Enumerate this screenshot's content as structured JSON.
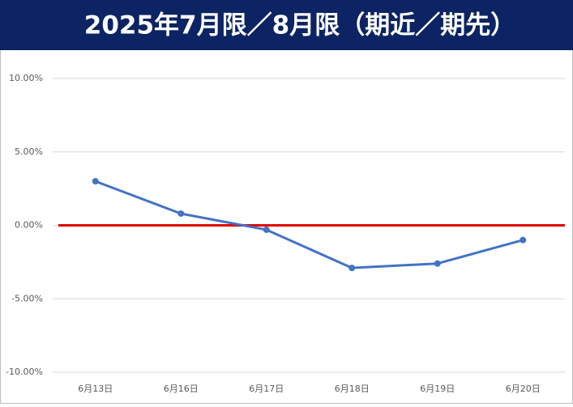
{
  "chart_data": {
    "type": "line",
    "title": "2025年7月限／8月限（期近／期先）",
    "categories": [
      "6月13日",
      "6月16日",
      "6月17日",
      "6月18日",
      "6月19日",
      "6月20日"
    ],
    "values": [
      3.0,
      0.8,
      -0.3,
      -2.9,
      -2.6,
      -1.0
    ],
    "color": "#4472c4",
    "ylim": [
      -10,
      10
    ],
    "yticks": [
      {
        "value": -10,
        "label": "-10.00%"
      },
      {
        "value": -5,
        "label": "-5.00%"
      },
      {
        "value": 0,
        "label": "0.00%"
      },
      {
        "value": 5,
        "label": "5.00%"
      },
      {
        "value": 10,
        "label": "10.00%"
      }
    ],
    "grid": true,
    "reference_line": {
      "value": 0,
      "color": "#e00000"
    }
  }
}
